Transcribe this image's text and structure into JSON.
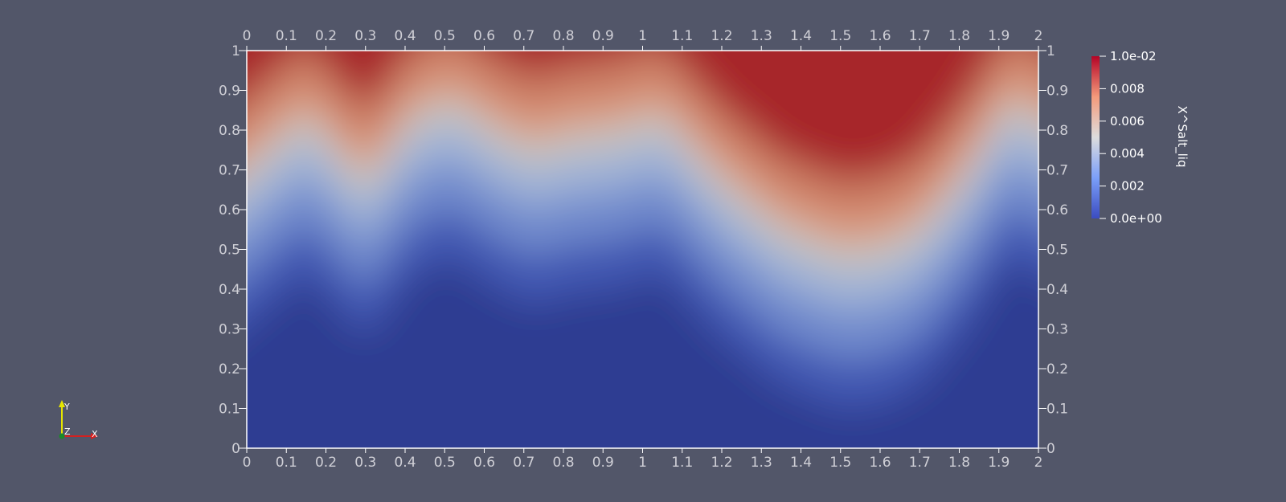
{
  "colors": {
    "background": "#525669",
    "axis_text": "#cfcfd6",
    "axis_line": "#ffffff",
    "colormap_low": "#3b4cc0",
    "colormap_mid": "#dddddd",
    "colormap_high": "#b40426"
  },
  "chart_data": {
    "type": "heatmap",
    "title": "",
    "xlim": [
      0,
      2
    ],
    "ylim": [
      0,
      1
    ],
    "x_ticks": [
      "0",
      "0.1",
      "0.2",
      "0.3",
      "0.4",
      "0.5",
      "0.6",
      "0.7",
      "0.8",
      "0.9",
      "1",
      "1.1",
      "1.2",
      "1.3",
      "1.4",
      "1.5",
      "1.6",
      "1.7",
      "1.8",
      "1.9",
      "2"
    ],
    "y_ticks": [
      "0",
      "0.1",
      "0.2",
      "0.3",
      "0.4",
      "0.5",
      "0.6",
      "0.7",
      "0.8",
      "0.9",
      "1"
    ],
    "colorbar": {
      "label": "X^Salt_liq",
      "range": [
        0,
        0.01
      ],
      "tick_labels": [
        "0.0e+00",
        "0.002",
        "0.004",
        "0.006",
        "0.008",
        "1.0e-02"
      ],
      "tick_values": [
        0,
        0.002,
        0.004,
        0.006,
        0.008,
        0.01
      ]
    },
    "contour_x": [
      0,
      0.15,
      0.3,
      0.42,
      0.52,
      0.62,
      0.72,
      0.82,
      0.92,
      1.05,
      1.2,
      1.35,
      1.5,
      1.6,
      1.7,
      1.8,
      1.93,
      2
    ],
    "contour_mid_y": [
      0.55,
      0.78,
      0.62,
      0.78,
      0.82,
      0.75,
      0.7,
      0.73,
      0.74,
      0.78,
      0.62,
      0.5,
      0.44,
      0.45,
      0.5,
      0.62,
      0.82,
      0.7
    ],
    "orientation_axes": {
      "y": "Y",
      "z": "Z",
      "x": "X"
    }
  }
}
